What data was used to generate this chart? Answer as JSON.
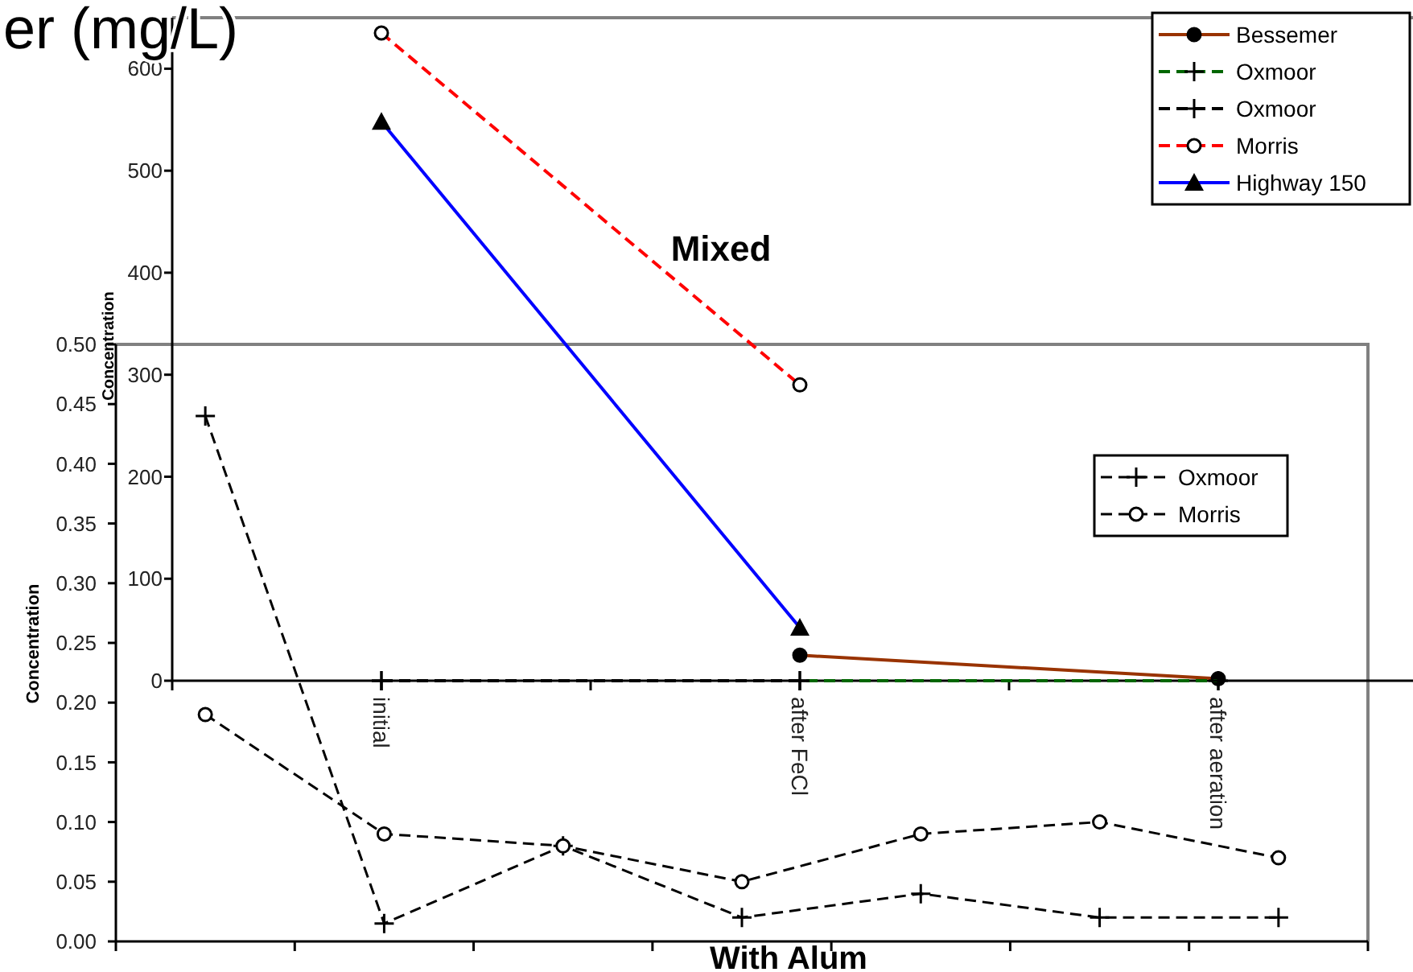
{
  "chart_data": [
    {
      "type": "line",
      "title": "Mixed",
      "ylabel": "Concentration",
      "annotations": [
        "er (mg/L)"
      ],
      "categories": [
        "initial",
        "after FeCl",
        "after aeration"
      ],
      "ylim": [
        0,
        650
      ],
      "yticks": [
        0,
        100,
        200,
        300,
        400,
        500,
        600
      ],
      "legend": "top right",
      "series": [
        {
          "name": "Bessemer",
          "color": "#993300",
          "marker": "circle",
          "line_style": "solid",
          "values": [
            null,
            25,
            2
          ]
        },
        {
          "name": "Oxmoor",
          "color": "#006600",
          "marker": "cross",
          "line_style": "dashed",
          "values": [
            0,
            0,
            0
          ]
        },
        {
          "name": "Oxmoor",
          "color": "#000000",
          "marker": "cross",
          "line_style": "dashed",
          "values": [
            0,
            0,
            null
          ]
        },
        {
          "name": "Morris",
          "color": "#ff0000",
          "marker": "circle",
          "line_style": "dashed",
          "values": [
            635,
            290,
            null
          ]
        },
        {
          "name": "Highway 150",
          "color": "#0000ff",
          "marker": "triangle",
          "line_style": "solid",
          "values": [
            548,
            52,
            null
          ]
        }
      ]
    },
    {
      "type": "line",
      "title": "With Alum",
      "ylabel": "Concentration",
      "categories": [
        null,
        null,
        null,
        null,
        null,
        null,
        null
      ],
      "ylim": [
        0,
        0.5
      ],
      "yticks": [
        {
          "value": 0,
          "label": "0.00"
        },
        {
          "value": 0.05,
          "label": "0.05"
        },
        {
          "value": 0.1,
          "label": "0.10"
        },
        {
          "value": 0.15,
          "label": "0.15"
        },
        {
          "value": 0.2,
          "label": "0.20"
        },
        {
          "value": 0.25,
          "label": "0.25"
        },
        {
          "value": 0.3,
          "label": "0.30"
        },
        {
          "value": 0.35,
          "label": "0.35"
        },
        {
          "value": 0.4,
          "label": "0.40"
        },
        {
          "value": 0.45,
          "label": "0.45"
        },
        {
          "value": 0.5,
          "label": "0.50"
        }
      ],
      "legend": "right",
      "series": [
        {
          "name": "Oxmoor",
          "color": "#000000",
          "marker": "cross",
          "line_style": "dashed",
          "values": [
            0.44,
            0.015,
            0.08,
            0.02,
            0.04,
            0.02,
            0.02
          ]
        },
        {
          "name": "Morris",
          "color": "#000000",
          "marker": "circle",
          "line_style": "dashed",
          "values": [
            0.19,
            0.09,
            0.08,
            0.05,
            0.09,
            0.1,
            0.07
          ]
        }
      ]
    }
  ]
}
